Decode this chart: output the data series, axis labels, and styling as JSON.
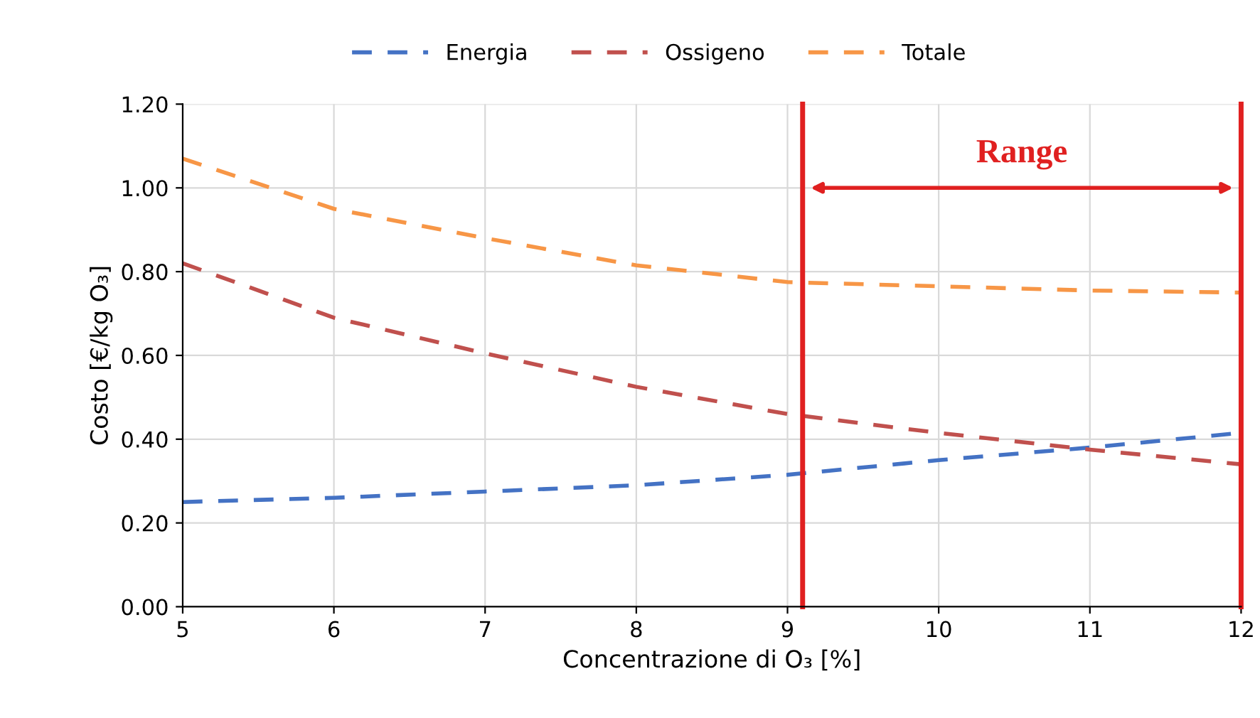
{
  "chart_data": {
    "type": "line",
    "xlabel": "Concentrazione di O₃ [%]",
    "ylabel": "Costo [€/kg O₃]",
    "x": [
      5,
      6,
      7,
      8,
      9,
      10,
      11,
      12
    ],
    "series": [
      {
        "name": "Energia",
        "color": "#4472c4",
        "values": [
          0.25,
          0.26,
          0.275,
          0.29,
          0.315,
          0.35,
          0.38,
          0.415
        ]
      },
      {
        "name": "Ossigeno",
        "color": "#c0504d",
        "values": [
          0.82,
          0.69,
          0.605,
          0.525,
          0.46,
          0.415,
          0.375,
          0.34
        ]
      },
      {
        "name": "Totale",
        "color": "#f79646",
        "values": [
          1.07,
          0.95,
          0.88,
          0.815,
          0.775,
          0.765,
          0.755,
          0.75
        ]
      }
    ],
    "xlim": [
      5,
      12
    ],
    "xticks": [
      5,
      6,
      7,
      8,
      9,
      10,
      11,
      12
    ],
    "ylim": [
      0,
      1.2
    ],
    "yticks": [
      {
        "value": 0,
        "label": "0.00"
      },
      {
        "value": 0.2,
        "label": "0.20"
      },
      {
        "value": 0.4,
        "label": "0.40"
      },
      {
        "value": 0.6,
        "label": "0.60"
      },
      {
        "value": 0.8,
        "label": "0.80"
      },
      {
        "value": 1.0,
        "label": "1.00"
      },
      {
        "value": 1.2,
        "label": "1.20"
      }
    ],
    "ref_lines": [
      {
        "axis": "x",
        "value": 9.1,
        "color": "#e02020"
      },
      {
        "axis": "x",
        "value": 12,
        "color": "#e02020"
      }
    ],
    "annotations": [
      "Range"
    ],
    "grid": true,
    "legend": "top",
    "line_style": "dashed",
    "marker": "none"
  }
}
